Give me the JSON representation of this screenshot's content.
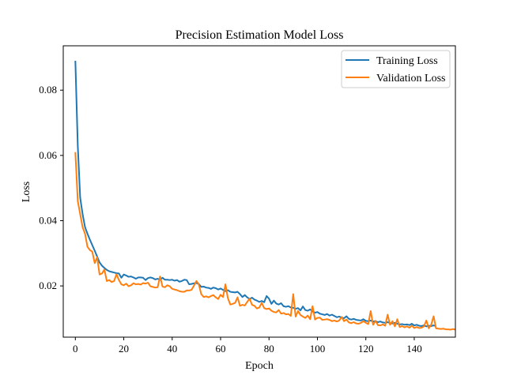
{
  "chart_data": {
    "type": "line",
    "title": "Precision Estimation Model Loss",
    "xlabel": "Epoch",
    "ylabel": "Loss",
    "xlim": [
      -5,
      157
    ],
    "ylim": [
      0.0043,
      0.0936
    ],
    "xticks": [
      0,
      20,
      40,
      60,
      80,
      100,
      120,
      140
    ],
    "yticks": [
      0.02,
      0.04,
      0.06,
      0.08
    ],
    "ytick_labels": [
      "0.02",
      "0.04",
      "0.06",
      "0.08"
    ],
    "grid": false,
    "legend_position": "top-right",
    "colors": {
      "training": "#1f77b4",
      "validation": "#ff7f0e"
    },
    "series": [
      {
        "name": "Training Loss",
        "color": "#1f77b4",
        "values": [
          0.089,
          0.063,
          0.047,
          0.042,
          0.038,
          0.036,
          0.0342,
          0.0325,
          0.0308,
          0.029,
          0.0272,
          0.0262,
          0.0255,
          0.0249,
          0.0245,
          0.0243,
          0.0241,
          0.0239,
          0.0238,
          0.0225,
          0.0235,
          0.0232,
          0.0228,
          0.0229,
          0.0226,
          0.0222,
          0.0226,
          0.0226,
          0.0225,
          0.0218,
          0.0224,
          0.0226,
          0.0224,
          0.022,
          0.0222,
          0.0219,
          0.0225,
          0.0219,
          0.0219,
          0.0218,
          0.0219,
          0.0216,
          0.0218,
          0.0213,
          0.0215,
          0.0219,
          0.0218,
          0.0205,
          0.0206,
          0.0208,
          0.0209,
          0.0206,
          0.0197,
          0.0198,
          0.0195,
          0.0194,
          0.0191,
          0.0195,
          0.0193,
          0.0189,
          0.0192,
          0.0188,
          0.0184,
          0.0187,
          0.0182,
          0.0181,
          0.018,
          0.0182,
          0.0175,
          0.0166,
          0.0172,
          0.0165,
          0.016,
          0.0164,
          0.0158,
          0.0155,
          0.0151,
          0.0154,
          0.015,
          0.0169,
          0.0161,
          0.0145,
          0.0155,
          0.0146,
          0.0143,
          0.0147,
          0.0138,
          0.0136,
          0.0138,
          0.0134,
          0.0133,
          0.013,
          0.0132,
          0.0125,
          0.0137,
          0.0126,
          0.0124,
          0.0128,
          0.0122,
          0.0118,
          0.012,
          0.0115,
          0.0113,
          0.0111,
          0.0114,
          0.0109,
          0.0112,
          0.0108,
          0.0104,
          0.0106,
          0.0103,
          0.0101,
          0.0107,
          0.0099,
          0.0097,
          0.0099,
          0.0096,
          0.0095,
          0.0094,
          0.0098,
          0.0093,
          0.0092,
          0.0094,
          0.0091,
          0.0092,
          0.0089,
          0.0091,
          0.0088,
          0.0087,
          0.0089,
          0.0086,
          0.0085,
          0.0087,
          0.0084,
          0.0082,
          0.0083,
          0.0081,
          0.0082,
          0.008,
          0.0084,
          0.0079,
          0.0081,
          0.0078,
          0.0077,
          0.0079,
          0.0076,
          0.0078,
          0.0077,
          0.0079,
          0.0077
        ]
      },
      {
        "name": "Validation Loss",
        "color": "#ff7f0e",
        "values": [
          0.061,
          0.046,
          0.042,
          0.038,
          0.036,
          0.032,
          0.031,
          0.0305,
          0.027,
          0.0288,
          0.0235,
          0.0238,
          0.025,
          0.0215,
          0.0218,
          0.0212,
          0.0215,
          0.0236,
          0.0218,
          0.0205,
          0.0202,
          0.0207,
          0.0199,
          0.0202,
          0.0208,
          0.0205,
          0.0206,
          0.0204,
          0.0209,
          0.0207,
          0.021,
          0.0199,
          0.0197,
          0.0195,
          0.0196,
          0.0229,
          0.0198,
          0.0196,
          0.0202,
          0.0199,
          0.0191,
          0.0189,
          0.0187,
          0.0184,
          0.0182,
          0.0182,
          0.0186,
          0.0186,
          0.0188,
          0.0201,
          0.0215,
          0.0205,
          0.0175,
          0.0166,
          0.0168,
          0.0165,
          0.0169,
          0.0172,
          0.0165,
          0.016,
          0.0173,
          0.0166,
          0.0205,
          0.0163,
          0.0143,
          0.0145,
          0.0148,
          0.0165,
          0.0139,
          0.0142,
          0.014,
          0.0151,
          0.0161,
          0.0142,
          0.0139,
          0.0131,
          0.0134,
          0.0148,
          0.0132,
          0.0129,
          0.0131,
          0.0124,
          0.012,
          0.0119,
          0.0126,
          0.0115,
          0.0117,
          0.0113,
          0.0114,
          0.0108,
          0.0175,
          0.0106,
          0.0123,
          0.0111,
          0.0106,
          0.0102,
          0.0109,
          0.0098,
          0.0138,
          0.0097,
          0.0102,
          0.0103,
          0.0096,
          0.0097,
          0.0098,
          0.0096,
          0.0092,
          0.0094,
          0.0091,
          0.0094,
          0.0105,
          0.0092,
          0.0097,
          0.0088,
          0.0086,
          0.0089,
          0.0085,
          0.0084,
          0.0087,
          0.0092,
          0.0087,
          0.0083,
          0.0123,
          0.0081,
          0.0093,
          0.008,
          0.0079,
          0.0082,
          0.0078,
          0.0112,
          0.0081,
          0.0092,
          0.0076,
          0.0098,
          0.0074,
          0.0077,
          0.0073,
          0.0076,
          0.0072,
          0.0078,
          0.0071,
          0.0074,
          0.0071,
          0.0072,
          0.0076,
          0.0094,
          0.007,
          0.0081,
          0.0107,
          0.007,
          0.0069,
          0.0068,
          0.0069,
          0.0067,
          0.0067,
          0.0066,
          0.0068,
          0.0066
        ]
      }
    ]
  }
}
